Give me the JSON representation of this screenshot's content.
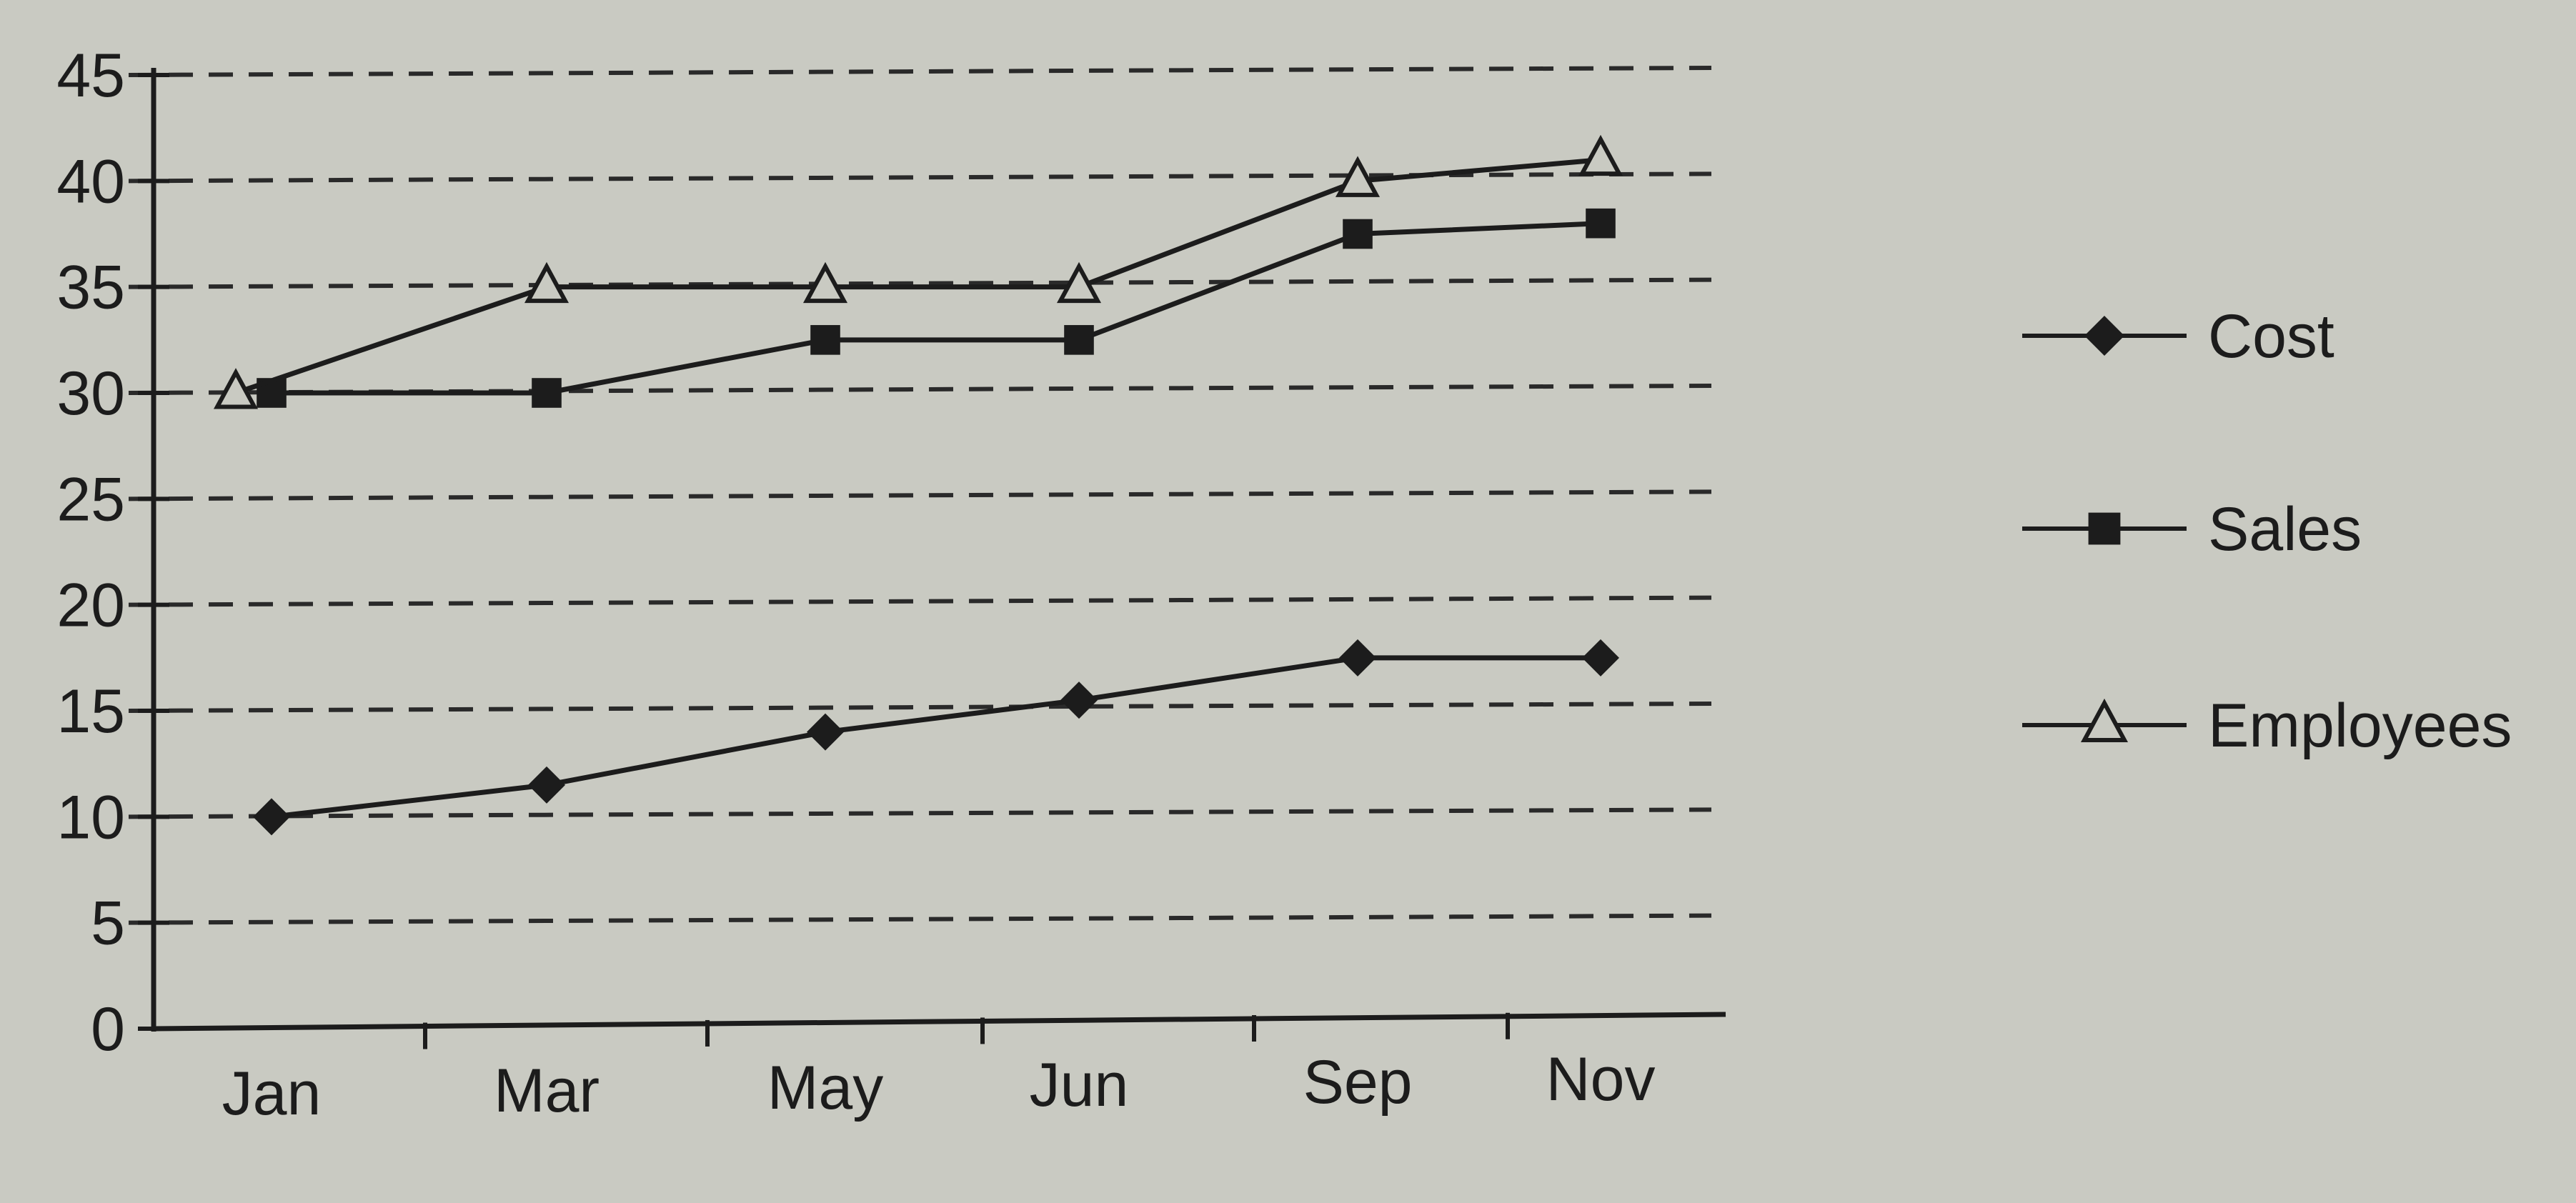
{
  "chart_data": {
    "type": "line",
    "title": "",
    "xlabel": "",
    "ylabel": "",
    "categories": [
      "Jan",
      "Mar",
      "May",
      "Jun",
      "Sep",
      "Nov"
    ],
    "ylim": [
      0,
      45
    ],
    "yticks": [
      "0",
      "5",
      "10",
      "15",
      "20",
      "25",
      "30",
      "35",
      "40",
      "45"
    ],
    "grid": true,
    "legend": "right",
    "series": [
      {
        "name": "Cost",
        "marker": "diamond",
        "values": [
          10,
          11.5,
          14,
          15.5,
          17.5,
          17.5
        ]
      },
      {
        "name": "Sales",
        "marker": "square",
        "values": [
          30,
          30,
          32.5,
          32.5,
          37.5,
          38
        ]
      },
      {
        "name": "Employees",
        "marker": "triangle-open",
        "values": [
          30,
          35,
          35,
          35,
          40,
          41
        ]
      }
    ],
    "colors": {
      "ink": "#1c1c1c",
      "paper": "#c9cac2",
      "grid": "#2a2a2a"
    }
  }
}
